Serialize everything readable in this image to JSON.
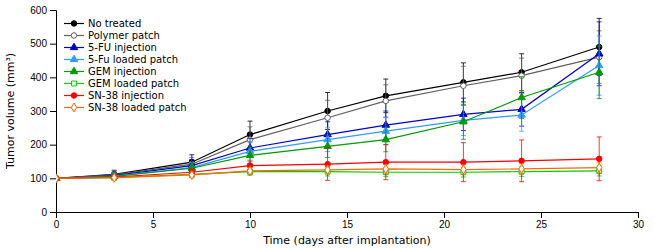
{
  "chart_data": {
    "type": "line",
    "xlabel": "Time  (days after implantation)",
    "ylabel": "Tumor volume (mm³)",
    "xlim": [
      0,
      30
    ],
    "ylim": [
      0,
      600
    ],
    "xticks": [
      0,
      5,
      10,
      15,
      20,
      25,
      30
    ],
    "yticks": [
      0,
      100,
      200,
      300,
      400,
      500,
      600
    ],
    "grid": false,
    "legend": "upper-left",
    "x": [
      0,
      3,
      7,
      10,
      14,
      17,
      21,
      24,
      28
    ],
    "series": [
      {
        "name": "No treated",
        "color": "#000000",
        "marker": "circle",
        "values": [
          100,
          112,
          148,
          230,
          300,
          345,
          385,
          415,
          490
        ],
        "errors": [
          5,
          12,
          22,
          40,
          55,
          50,
          58,
          55,
          85
        ]
      },
      {
        "name": "Polymer patch",
        "color": "#606060",
        "marker": "circle-open",
        "values": [
          100,
          110,
          142,
          215,
          280,
          330,
          375,
          405,
          460
        ],
        "errors": [
          5,
          12,
          20,
          38,
          52,
          48,
          58,
          52,
          78
        ]
      },
      {
        "name": "5-FU injection",
        "color": "#0000CC",
        "marker": "triangle",
        "values": [
          100,
          108,
          138,
          190,
          230,
          258,
          290,
          305,
          470
        ],
        "errors": [
          5,
          10,
          18,
          28,
          38,
          42,
          48,
          50,
          95
        ]
      },
      {
        "name": "5-Fu loaded patch",
        "color": "#3399FF",
        "marker": "triangle",
        "values": [
          100,
          107,
          132,
          180,
          215,
          240,
          272,
          288,
          435
        ],
        "errors": [
          5,
          9,
          16,
          26,
          35,
          40,
          45,
          48,
          88
        ]
      },
      {
        "name": "GEM injection",
        "color": "#009900",
        "marker": "triangle",
        "values": [
          100,
          106,
          130,
          168,
          195,
          215,
          268,
          340,
          415
        ],
        "errors": [
          5,
          9,
          15,
          24,
          33,
          36,
          52,
          62,
          78
        ]
      },
      {
        "name": "GEM loaded patch",
        "color": "#00CC00",
        "marker": "square-open",
        "values": [
          100,
          102,
          112,
          120,
          120,
          118,
          118,
          120,
          122
        ],
        "errors": [
          5,
          6,
          9,
          11,
          13,
          13,
          14,
          14,
          15
        ]
      },
      {
        "name": "SN-38 injection",
        "color": "#FF0000",
        "marker": "circle",
        "values": [
          100,
          104,
          118,
          138,
          142,
          148,
          148,
          152,
          158
        ],
        "errors": [
          5,
          7,
          11,
          13,
          48,
          52,
          58,
          62,
          65
        ]
      },
      {
        "name": "SN-38 loaded patch",
        "color": "#FF6600",
        "marker": "diamond-open",
        "values": [
          100,
          102,
          110,
          122,
          125,
          128,
          126,
          128,
          132
        ],
        "errors": [
          4,
          6,
          8,
          10,
          12,
          13,
          14,
          15,
          16
        ]
      }
    ]
  }
}
